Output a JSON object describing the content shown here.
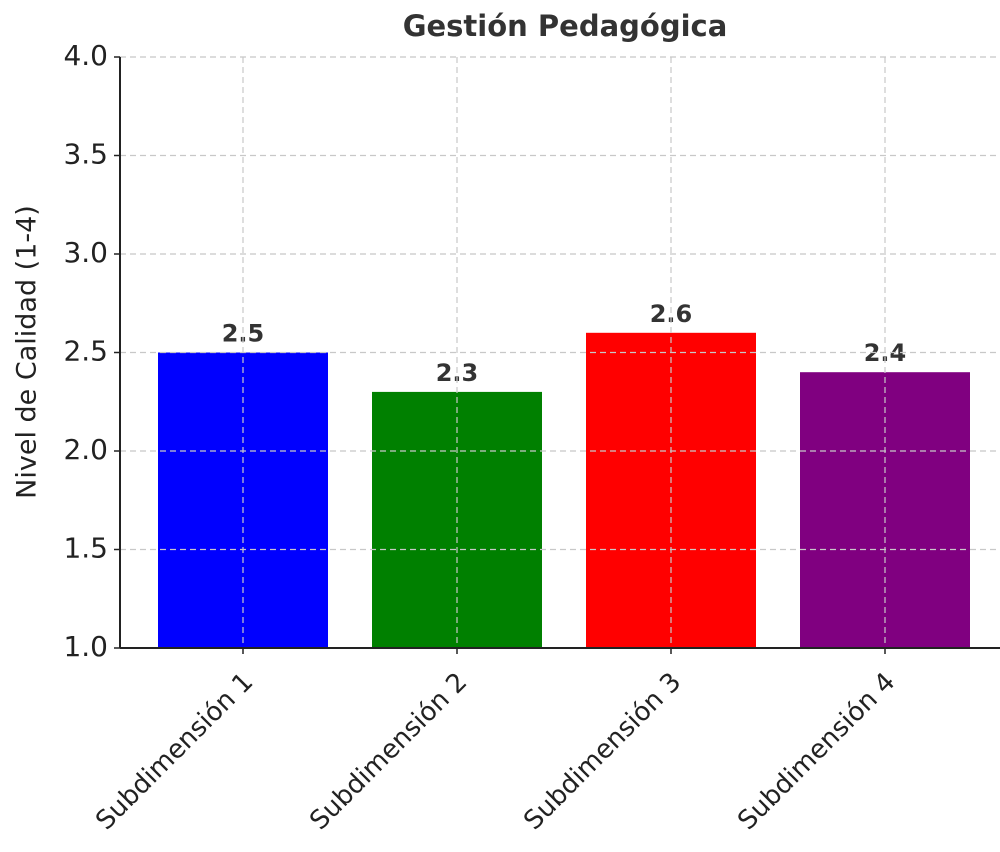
{
  "chart_data": {
    "type": "bar",
    "title": "Gestión Pedagógica",
    "ylabel": "Nivel de Calidad (1-4)",
    "categories": [
      "Subdimensión 1",
      "Subdimensión 2",
      "Subdimensión 3",
      "Subdimensión 4"
    ],
    "values": [
      2.5,
      2.3,
      2.6,
      2.4
    ],
    "colors": [
      "#0000ff",
      "#008000",
      "#ff0000",
      "#800080"
    ],
    "ylim": [
      1,
      4
    ],
    "yticks": [
      {
        "value": 1,
        "label": "1.0"
      },
      1.5,
      {
        "value": 2,
        "label": "2.0"
      },
      2.5,
      {
        "value": 3,
        "label": "3.0"
      },
      3.5,
      {
        "value": 4,
        "label": "4.0"
      }
    ],
    "grid": true
  }
}
